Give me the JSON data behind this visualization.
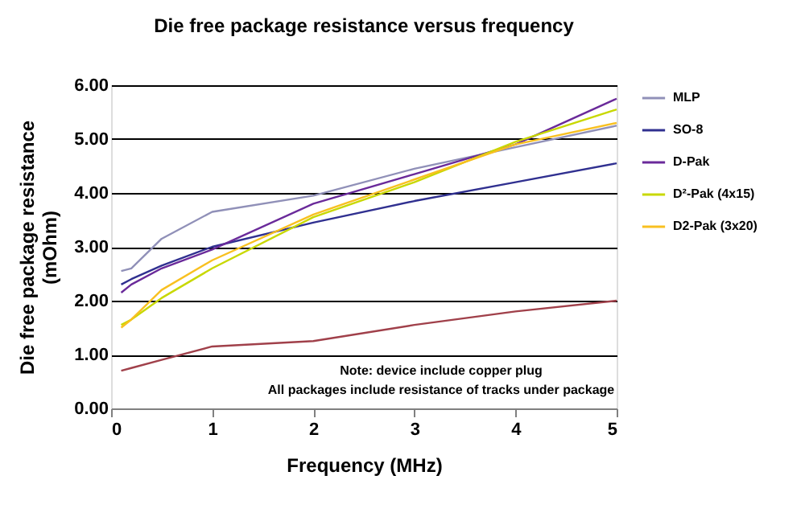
{
  "chart_data": {
    "type": "line",
    "title": "Die free package resistance versus frequency",
    "xlabel": "Frequency (MHz)",
    "ylabel": "Die free package resistance\n(mOhm)",
    "x": [
      0.1,
      0.2,
      0.5,
      1,
      2,
      3,
      4,
      5
    ],
    "series": [
      {
        "color": "#a0404a",
        "values": [
          0.7,
          0.75,
          0.9,
          1.15,
          1.25,
          1.55,
          1.8,
          2.0
        ]
      },
      {
        "name": "MLP",
        "color": "#9090b8",
        "values": [
          2.55,
          2.6,
          3.15,
          3.65,
          3.95,
          4.45,
          4.85,
          5.25
        ]
      },
      {
        "name": "SO-8",
        "color": "#303090",
        "values": [
          2.3,
          2.4,
          2.65,
          3.0,
          3.45,
          3.85,
          4.2,
          4.55
        ]
      },
      {
        "name": "D-Pak",
        "color": "#6a2a9a",
        "values": [
          2.15,
          2.3,
          2.6,
          2.95,
          3.8,
          4.35,
          4.9,
          5.75
        ]
      },
      {
        "name": "D²-Pak (4x15)",
        "color": "#c8d800",
        "values": [
          1.55,
          1.65,
          2.05,
          2.6,
          3.55,
          4.2,
          4.95,
          5.55
        ]
      },
      {
        "name": "D2-Pak (3x20)",
        "color": "#f8c020",
        "values": [
          1.5,
          1.65,
          2.2,
          2.75,
          3.6,
          4.25,
          4.9,
          5.3
        ]
      }
    ],
    "xlim": [
      0,
      5
    ],
    "xticks": [
      0,
      1,
      2,
      3,
      4,
      5
    ],
    "ylim": [
      0,
      6
    ],
    "yticks": [
      {
        "value": 0,
        "label": "0.00"
      },
      {
        "value": 1,
        "label": "1.00"
      },
      {
        "value": 2,
        "label": "2.00"
      },
      {
        "value": 3,
        "label": "3.00"
      },
      {
        "value": 4,
        "label": "4.00"
      },
      {
        "value": 5,
        "label": "5.00"
      },
      {
        "value": 6,
        "label": "6.00"
      }
    ],
    "grid": "y",
    "legend": "right",
    "marker": "none",
    "line_style": "solid",
    "annotations": [
      "Note: device include copper plug",
      "All packages include resistance of tracks under package"
    ]
  }
}
